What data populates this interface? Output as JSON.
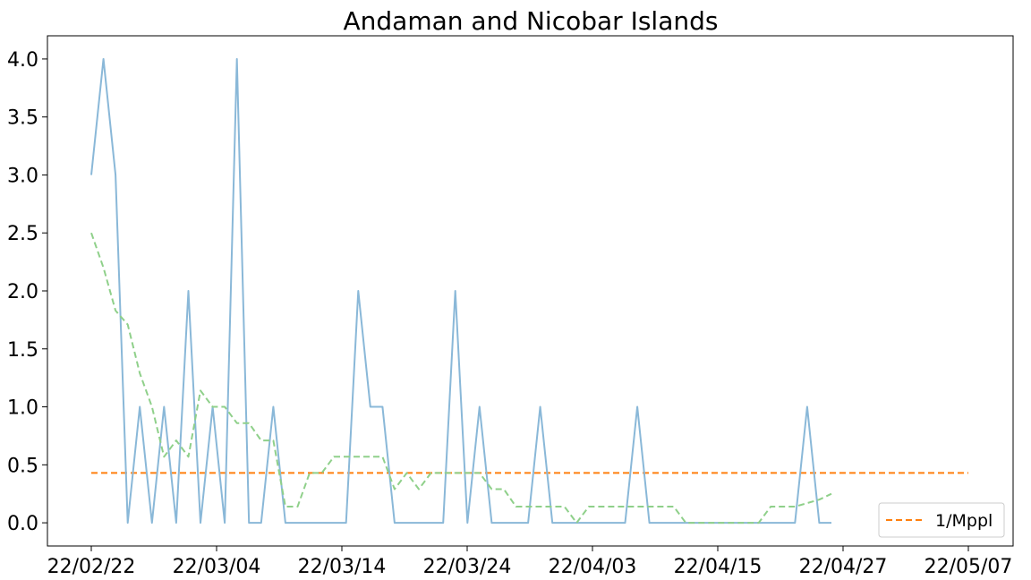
{
  "chart_data": {
    "type": "line",
    "title": "Andaman and Nicobar Islands",
    "xlabel": "",
    "ylabel": "",
    "x_tick_labels": [
      "22/02/22",
      "22/03/04",
      "22/03/14",
      "22/03/24",
      "22/04/03",
      "22/04/15",
      "22/04/27",
      "22/05/07"
    ],
    "y_tick_labels": [
      "0.0",
      "0.5",
      "1.0",
      "1.5",
      "2.0",
      "2.5",
      "3.0",
      "3.5",
      "4.0"
    ],
    "ylim": [
      -0.2,
      4.2
    ],
    "grid": false,
    "legend_position": "lower-right",
    "series": [
      {
        "name": "",
        "style": "solid",
        "color": "#8ab8d8",
        "values": [
          3,
          4,
          3,
          0,
          1,
          0,
          1,
          0,
          2,
          0,
          1,
          0,
          4,
          0,
          0,
          1,
          0,
          0,
          0,
          0,
          0,
          0,
          2,
          1,
          1,
          0,
          0,
          0,
          0,
          0,
          2,
          0,
          1,
          0,
          0,
          0,
          0,
          1,
          0,
          0,
          0,
          0,
          0,
          0,
          0,
          1,
          0,
          0,
          0,
          0,
          0,
          0,
          0,
          0,
          0,
          0,
          0,
          0,
          0,
          1,
          0,
          0
        ]
      },
      {
        "name": "",
        "style": "dashed",
        "color": "#8fd08a",
        "values": [
          2.5,
          2.2,
          1.83,
          1.71,
          1.29,
          1.0,
          0.57,
          0.71,
          0.57,
          1.14,
          1.0,
          1.0,
          0.86,
          0.86,
          0.71,
          0.71,
          0.14,
          0.14,
          0.43,
          0.43,
          0.57,
          0.57,
          0.57,
          0.57,
          0.57,
          0.29,
          0.43,
          0.29,
          0.43,
          0.43,
          0.43,
          0.43,
          0.43,
          0.29,
          0.29,
          0.14,
          0.14,
          0.14,
          0.14,
          0.14,
          0.0,
          0.14,
          0.14,
          0.14,
          0.14,
          0.14,
          0.14,
          0.14,
          0.14,
          0.0,
          0.0,
          0.0,
          0.0,
          0.0,
          0.0,
          0.0,
          0.14,
          0.14,
          0.14,
          0.17,
          0.2,
          0.25
        ]
      },
      {
        "name": "1/Mppl",
        "style": "dashed",
        "color": "#ff7f0e",
        "values": [
          0.43,
          0.43
        ]
      }
    ]
  }
}
